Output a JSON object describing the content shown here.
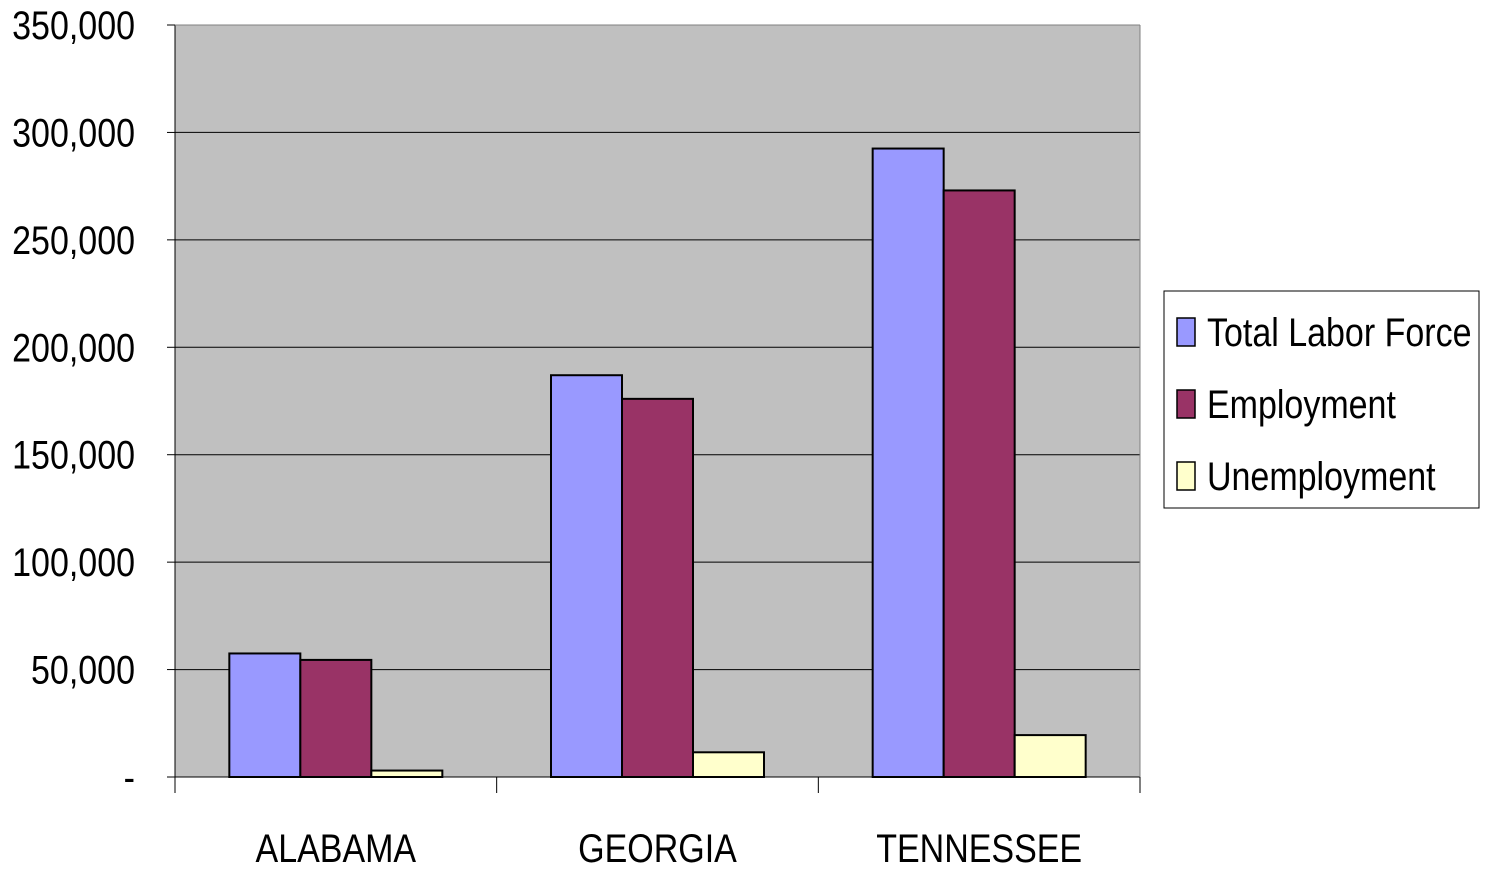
{
  "chart_data": {
    "type": "bar",
    "categories": [
      "ALABAMA",
      "GEORGIA",
      "TENNESSEE"
    ],
    "series": [
      {
        "name": "Total Labor Force",
        "values": [
          57500,
          187000,
          292500
        ],
        "color": "#9999ff"
      },
      {
        "name": "Employment",
        "values": [
          54500,
          176000,
          273000
        ],
        "color": "#993366"
      },
      {
        "name": "Unemployment",
        "values": [
          3000,
          11500,
          19500
        ],
        "color": "#ffffcc"
      }
    ],
    "ylim": [
      0,
      350000
    ],
    "yticks": [
      0,
      50000,
      100000,
      150000,
      200000,
      250000,
      300000,
      350000
    ],
    "ytick_labels": [
      "-",
      "50,000",
      "100,000",
      "150,000",
      "200,000",
      "250,000",
      "300,000",
      "350,000"
    ],
    "plot_background": "#c0c0c0",
    "grid": true,
    "legend_position": "right",
    "title": "",
    "xlabel": "",
    "ylabel": ""
  }
}
